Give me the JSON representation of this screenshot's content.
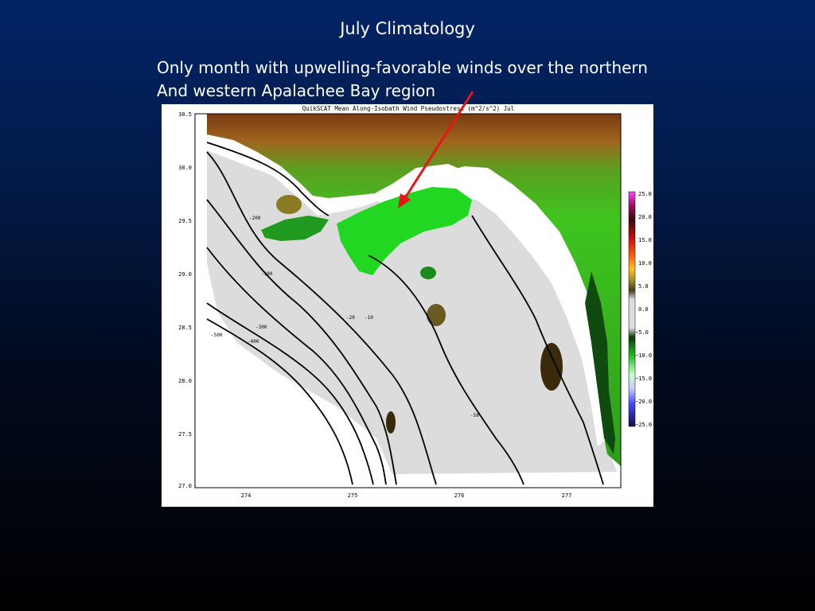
{
  "slide": {
    "title": "July Climatology",
    "subtitle_lines": [
      "Only month with upwelling-favorable winds over the northern",
      "And western Apalachee Bay region"
    ]
  },
  "figure": {
    "title": "QuikSCAT Mean Along-Isobath Wind Pseudostress (m^2/s^2) Jul",
    "x_ticks": [
      "274",
      "275",
      "276",
      "277"
    ],
    "y_ticks": [
      "30.5",
      "30.0",
      "29.5",
      "29.0",
      "28.5",
      "28.0",
      "27.5",
      "27.0"
    ],
    "colorbar_labels": [
      "25.0",
      "20.0",
      "15.0",
      "10.0",
      "5.0",
      "0.0",
      "−5.0",
      "−10.0",
      "−15.0",
      "−20.0",
      "−25.0"
    ],
    "contour_labels": [
      "-10",
      "-20",
      "-50",
      "-100",
      "-200",
      "-300",
      "-400",
      "-500"
    ],
    "colors": {
      "land_low": "#2fae1a",
      "land_high": "#8a3a10",
      "upwelling": "#22dd22",
      "ocean_neutral": "#dcdcdc",
      "arrow": "#e8141a"
    }
  }
}
